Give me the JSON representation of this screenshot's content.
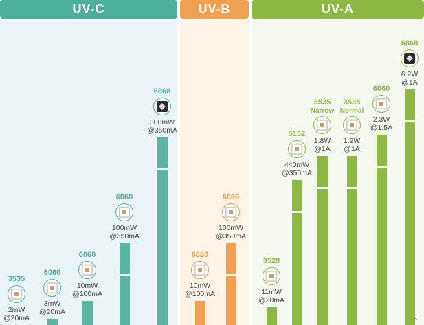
{
  "header": {
    "uvc": {
      "label": "UV-C",
      "color": "#4caf9c"
    },
    "uvb": {
      "label": "UV-B",
      "color": "#f0a050"
    },
    "uva": {
      "label": "UV-A",
      "color": "#8db843"
    }
  },
  "chart_data": {
    "type": "bar",
    "groups": [
      "UV-C",
      "UV-B",
      "UV-A"
    ],
    "products": [
      {
        "group": "UV-C",
        "package": "3535",
        "subtitle": "",
        "power": "2mW",
        "current": "@20mA",
        "icon": "led-chip-icon",
        "bar_level": 0.0
      },
      {
        "group": "UV-C",
        "package": "6060",
        "subtitle": "",
        "power": "3mW",
        "current": "@20mA",
        "icon": "led-chip-icon",
        "bar_level": 0.02
      },
      {
        "group": "UV-C",
        "package": "6060",
        "subtitle": "",
        "power": "10mW",
        "current": "@100mA",
        "icon": "led-chip-icon",
        "bar_level": 0.08
      },
      {
        "group": "UV-C",
        "package": "6060",
        "subtitle": "",
        "power": "100mW",
        "current": "@350mA",
        "icon": "led-chip-icon",
        "bar_level": 0.27
      },
      {
        "group": "UV-C",
        "package": "6868",
        "subtitle": "",
        "power": "300mW",
        "current": "@350mA",
        "icon": "led-chip-dark-icon",
        "bar_level": 0.62
      },
      {
        "group": "UV-B",
        "package": "6060",
        "subtitle": "",
        "power": "10mW",
        "current": "@100mA",
        "icon": "led-chip-icon",
        "bar_level": 0.08
      },
      {
        "group": "UV-B",
        "package": "6060",
        "subtitle": "",
        "power": "100mW",
        "current": "@350mA",
        "icon": "led-chip-icon",
        "bar_level": 0.27
      },
      {
        "group": "UV-A",
        "package": "3528",
        "subtitle": "",
        "power": "11mW",
        "current": "@20mA",
        "icon": "led-chip-icon",
        "bar_level": 0.06
      },
      {
        "group": "UV-A",
        "package": "5152",
        "subtitle": "",
        "power": "440mW",
        "current": "@350mA",
        "icon": "led-chip-icon",
        "bar_level": 0.48
      },
      {
        "group": "UV-A",
        "package": "3535",
        "subtitle": "Narrow",
        "power": "1.8W",
        "current": "@1A",
        "icon": "led-chip-icon",
        "bar_level": 0.56
      },
      {
        "group": "UV-A",
        "package": "3535",
        "subtitle": "Normal",
        "power": "1.9W",
        "current": "@1A",
        "icon": "led-chip-icon",
        "bar_level": 0.56
      },
      {
        "group": "UV-A",
        "package": "6060",
        "subtitle": "",
        "power": "2.3W",
        "current": "@1.5A",
        "icon": "led-chip-icon",
        "bar_level": 0.63
      },
      {
        "group": "UV-A",
        "package": "6868",
        "subtitle": "",
        "power": "6.2W",
        "current": "@1A",
        "icon": "led-chip-dark-icon",
        "bar_level": 0.78
      }
    ]
  }
}
